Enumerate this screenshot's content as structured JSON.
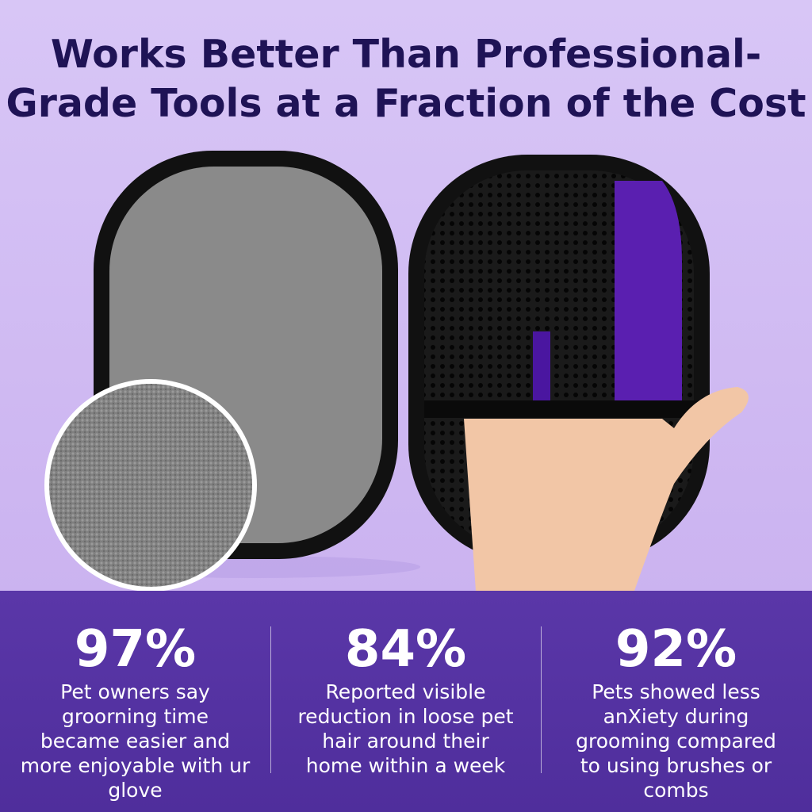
{
  "header": {
    "title": [
      "Works Better Than Professional-",
      "Grade Tools at a Fraction of the Cost"
    ]
  },
  "stats": [
    {
      "value": "97%",
      "description": [
        "Pet owners say",
        "groorning time",
        "became easier and",
        "more enjoyable with ur",
        "glove"
      ]
    },
    {
      "value": "84%",
      "description": [
        "Reported visible",
        "reduction in loose pet",
        "hair around their",
        "home within a week"
      ]
    },
    {
      "value": "92%",
      "description": [
        "Pets showed less",
        "anXiety during",
        "grooming compared",
        "to using brushes or",
        "combs"
      ]
    }
  ]
}
